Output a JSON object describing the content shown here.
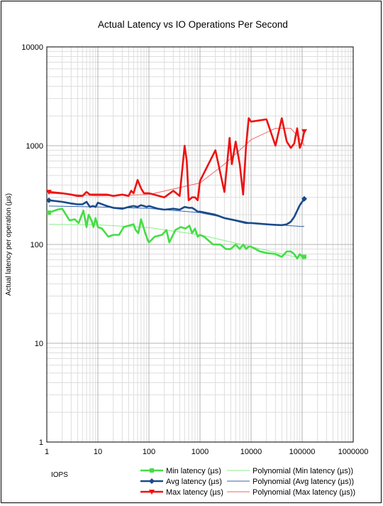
{
  "chart_data": {
    "type": "line",
    "title": "Actual Latency vs IO Operations Per Second",
    "xlabel": "IOPS",
    "ylabel": "Actual latency per operation (µs)",
    "xscale": "log",
    "yscale": "log",
    "xlim": [
      1,
      1000000
    ],
    "ylim": [
      1,
      10000
    ],
    "xticks": [
      "1",
      "10",
      "100",
      "1000",
      "10000",
      "100000",
      "1000000"
    ],
    "yticks": [
      "1",
      "10",
      "100",
      "1000",
      "10000"
    ],
    "grid": true,
    "legend_position": "bottom",
    "series": [
      {
        "name": "Min latency (µs)",
        "color": "#44dd44",
        "marker": "square",
        "x": [
          1.1,
          1.6,
          2.0,
          2.8,
          3.5,
          4.2,
          5.2,
          6.0,
          6.6,
          7.5,
          8.2,
          9.0,
          10,
          12,
          16,
          20,
          26,
          32,
          40,
          50,
          55,
          62,
          70,
          78,
          85,
          95,
          100,
          130,
          180,
          220,
          250,
          330,
          420,
          520,
          620,
          700,
          800,
          900,
          1000,
          1200,
          1800,
          2500,
          3200,
          4000,
          5000,
          6000,
          7000,
          8000,
          9000,
          10000,
          15000,
          20000,
          30000,
          40000,
          50000,
          60000,
          70000,
          80000,
          90000,
          100000,
          110000
        ],
        "y": [
          210,
          225,
          230,
          175,
          180,
          165,
          220,
          150,
          200,
          175,
          150,
          185,
          150,
          145,
          120,
          125,
          125,
          150,
          155,
          160,
          140,
          130,
          180,
          150,
          130,
          110,
          105,
          120,
          125,
          140,
          105,
          140,
          150,
          145,
          155,
          130,
          145,
          120,
          125,
          120,
          100,
          100,
          90,
          90,
          100,
          90,
          100,
          90,
          95,
          95,
          85,
          82,
          80,
          75,
          85,
          85,
          80,
          72,
          80,
          75,
          75
        ]
      },
      {
        "name": "Avg latency (µs)",
        "color": "#1a4a8a",
        "marker": "diamond",
        "x": [
          1.1,
          2.0,
          3.0,
          4.0,
          5.0,
          6.0,
          7.0,
          8.0,
          9.0,
          10,
          15,
          20,
          30,
          40,
          50,
          60,
          70,
          80,
          90,
          100,
          150,
          200,
          300,
          400,
          500,
          600,
          700,
          800,
          900,
          1000,
          2000,
          3000,
          5000,
          8000,
          10000,
          20000,
          30000,
          40000,
          50000,
          60000,
          70000,
          80000,
          90000,
          100000,
          110000
        ],
        "y": [
          280,
          270,
          260,
          255,
          255,
          270,
          240,
          245,
          240,
          265,
          245,
          235,
          230,
          240,
          245,
          240,
          250,
          245,
          240,
          245,
          230,
          225,
          230,
          225,
          240,
          235,
          235,
          225,
          215,
          215,
          200,
          185,
          175,
          165,
          165,
          160,
          158,
          157,
          160,
          170,
          190,
          220,
          250,
          270,
          290
        ]
      },
      {
        "name": "Max latency (µs)",
        "color": "#ee1111",
        "marker": "triangle-down",
        "x": [
          1.1,
          2.0,
          3.0,
          4.0,
          5.0,
          6.0,
          7.0,
          8.0,
          10,
          15,
          20,
          30,
          40,
          45,
          50,
          60,
          70,
          80,
          100,
          200,
          300,
          400,
          500,
          550,
          600,
          700,
          800,
          900,
          1000,
          2000,
          3000,
          3800,
          4200,
          5000,
          6000,
          7000,
          8000,
          9000,
          10000,
          20000,
          30000,
          40000,
          50000,
          60000,
          70000,
          80000,
          90000,
          100000,
          110000
        ],
        "y": [
          340,
          330,
          320,
          310,
          310,
          340,
          320,
          320,
          320,
          320,
          310,
          320,
          310,
          350,
          330,
          450,
          370,
          330,
          330,
          300,
          350,
          310,
          1000,
          700,
          280,
          300,
          300,
          280,
          440,
          900,
          340,
          1200,
          650,
          1100,
          650,
          320,
          1000,
          1900,
          1750,
          1850,
          1000,
          1900,
          1100,
          950,
          1050,
          1500,
          950,
          1100,
          1400
        ]
      },
      {
        "name": "Polynomial (Min latency (µs))",
        "color": "#88ee88",
        "marker": "none",
        "x": [
          1.1,
          10,
          100,
          1000,
          10000,
          100000,
          110000
        ],
        "y": [
          160,
          158,
          148,
          125,
          95,
          72,
          71
        ]
      },
      {
        "name": "Polynomial (Avg latency (µs))",
        "color": "#3366aa",
        "marker": "none",
        "x": [
          1.1,
          10,
          100,
          1000,
          10000,
          100000,
          110000
        ],
        "y": [
          245,
          240,
          232,
          210,
          165,
          152,
          153
        ]
      },
      {
        "name": "Polynomial (Max latency (µs))",
        "color": "#ee6666",
        "marker": "none",
        "x": [
          1.1,
          10,
          100,
          1000,
          3000,
          10000,
          30000,
          60000,
          100000,
          110000
        ],
        "y": [
          330,
          310,
          320,
          420,
          650,
          1150,
          1500,
          1500,
          1100,
          1000
        ]
      }
    ]
  }
}
